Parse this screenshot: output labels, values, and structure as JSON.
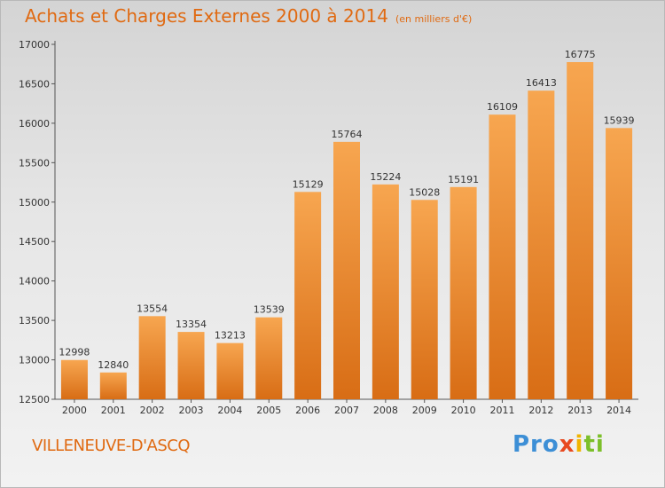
{
  "header": {
    "title": "Achats et Charges Externes 2000 à 2014",
    "unit": "(en milliers d'€)"
  },
  "footer": {
    "city": "VILLENEUVE-D'ASCQ",
    "logo": "Proxiti"
  },
  "colors": {
    "bar_light": "#f7a650",
    "bar_dark": "#d86d15",
    "accent": "#e06a12"
  },
  "chart_data": {
    "type": "bar",
    "categories": [
      "2000",
      "2001",
      "2002",
      "2003",
      "2004",
      "2005",
      "2006",
      "2007",
      "2008",
      "2009",
      "2010",
      "2011",
      "2012",
      "2013",
      "2014"
    ],
    "values": [
      12998,
      12840,
      13554,
      13354,
      13213,
      13539,
      15129,
      15764,
      15224,
      15028,
      15191,
      16109,
      16413,
      16775,
      15939
    ],
    "title": "Achats et Charges Externes 2000 à 2014",
    "subtitle": "(en milliers d'€)",
    "ylim": [
      12500,
      17000
    ],
    "yticks": [
      12500,
      13000,
      13500,
      14000,
      14500,
      15000,
      15500,
      16000,
      16500,
      17000
    ],
    "grid": false,
    "legend": "none"
  }
}
